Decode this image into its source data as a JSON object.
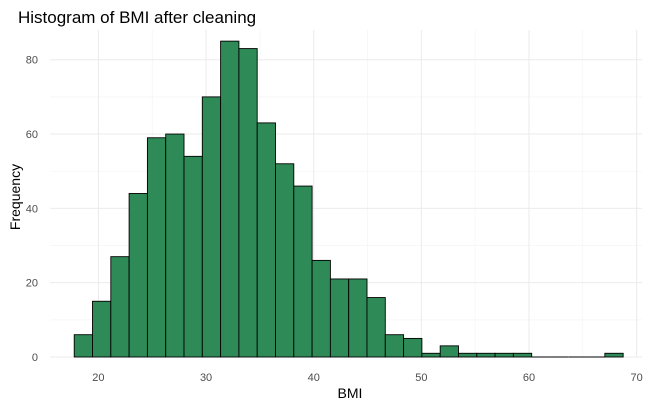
{
  "chart_data": {
    "type": "bar",
    "subtype": "histogram",
    "title": "Histogram of BMI after cleaning",
    "xlabel": "BMI",
    "ylabel": "Frequency",
    "xlim": [
      15.5,
      70.5
    ],
    "ylim": [
      0,
      88
    ],
    "x_ticks": [
      20,
      30,
      40,
      50,
      60,
      70
    ],
    "y_ticks": [
      0,
      20,
      40,
      60,
      80
    ],
    "bin_width": 1.7,
    "bin_starts": [
      17.75,
      19.45,
      21.15,
      22.85,
      24.55,
      26.25,
      27.95,
      29.65,
      31.35,
      33.05,
      34.75,
      36.45,
      38.15,
      39.85,
      41.55,
      43.25,
      44.95,
      46.65,
      48.35,
      50.05,
      51.75,
      53.45,
      55.15,
      56.85,
      58.55,
      60.25,
      61.95,
      63.65,
      65.35,
      67.05
    ],
    "values": [
      6,
      15,
      27,
      44,
      59,
      60,
      54,
      70,
      85,
      83,
      63,
      52,
      46,
      26,
      21,
      21,
      16,
      6,
      5,
      1,
      3,
      1,
      1,
      1,
      1,
      0,
      0,
      0,
      0,
      1
    ],
    "bar_color": "#2e8b57",
    "bar_outline": "#000000",
    "grid": true,
    "legend": "none"
  }
}
